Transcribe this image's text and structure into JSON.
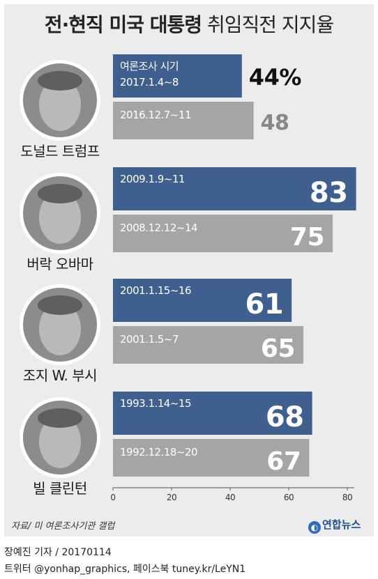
{
  "title": {
    "bold": "전·현직 미국 대통령",
    "light": "취임직전 지지율"
  },
  "chart_data": {
    "type": "bar",
    "xlim": [
      0,
      80
    ],
    "ticks": [
      0,
      20,
      40,
      60,
      80
    ],
    "groups": [
      {
        "name": "도널드 트럼프",
        "current": {
          "label_line1": "여론조사 시기",
          "label_line2": "2017.1.4~8",
          "value": 44,
          "value_text": "44%"
        },
        "previous": {
          "label": "2016.12.7~11",
          "value": 48,
          "value_text": "48"
        }
      },
      {
        "name": "버락 오바마",
        "current": {
          "label_line1": "",
          "label_line2": "2009.1.9~11",
          "value": 83,
          "value_text": "83"
        },
        "previous": {
          "label": "2008.12.12~14",
          "value": 75,
          "value_text": "75"
        }
      },
      {
        "name": "조지 W. 부시",
        "current": {
          "label_line1": "",
          "label_line2": "2001.1.15~16",
          "value": 61,
          "value_text": "61"
        },
        "previous": {
          "label": "2001.1.5~7",
          "value": 65,
          "value_text": "65"
        }
      },
      {
        "name": "빌 클린턴",
        "current": {
          "label_line1": "",
          "label_line2": "1993.1.14~15",
          "value": 68,
          "value_text": "68"
        },
        "previous": {
          "label": "1992.12.18~20",
          "value": 67,
          "value_text": "67"
        }
      }
    ]
  },
  "colors": {
    "current_bar": "#3f5f8e",
    "previous_bar": "#a4a5a7",
    "panel": "#ececed"
  },
  "source": "자료/ 미 여론조사기관 갤럽",
  "brand": "연합뉴스",
  "credit": "장예진 기자 / 20170114",
  "social": "트위터 @yonhap_graphics, 페이스북 tuney.kr/LeYN1"
}
